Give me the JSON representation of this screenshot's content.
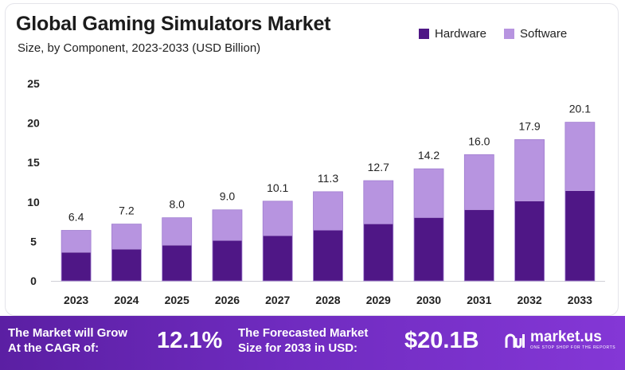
{
  "chart_data": {
    "type": "bar",
    "stacked": true,
    "title": "Global Gaming Simulators Market",
    "subtitle": "Size, by Component, 2023-2033 (USD Billion)",
    "categories": [
      "2023",
      "2024",
      "2025",
      "2026",
      "2027",
      "2028",
      "2029",
      "2030",
      "2031",
      "2032",
      "2033"
    ],
    "series": [
      {
        "name": "Hardware",
        "color": "#4f1786",
        "values": [
          3.6,
          4.0,
          4.5,
          5.1,
          5.7,
          6.4,
          7.2,
          8.0,
          9.0,
          10.1,
          11.4
        ]
      },
      {
        "name": "Software",
        "color": "#b794e0",
        "values": [
          2.8,
          3.2,
          3.5,
          3.9,
          4.4,
          4.9,
          5.5,
          6.2,
          7.0,
          7.8,
          8.7
        ]
      }
    ],
    "totals": [
      6.4,
      7.2,
      8.0,
      9.0,
      10.1,
      11.3,
      12.7,
      14.2,
      16.0,
      17.9,
      20.1
    ],
    "total_labels": [
      "6.4",
      "7.2",
      "8.0",
      "9.0",
      "10.1",
      "11.3",
      "12.7",
      "14.2",
      "16.0",
      "17.9",
      "20.1"
    ],
    "yticks": [
      "0",
      "5",
      "10",
      "15",
      "20",
      "25"
    ],
    "ylim": [
      0,
      25
    ],
    "legend_position": "top-right",
    "grid": false
  },
  "footer": {
    "cagr_text_line1": "The Market will Grow",
    "cagr_text_line2": "At the CAGR of:",
    "cagr_value": "12.1%",
    "forecast_text_line1": "The Forecasted Market",
    "forecast_text_line2": "Size for 2033 in USD:",
    "forecast_value": "$20.1B",
    "brand_name": "market.us",
    "brand_tagline": "ONE STOP SHOP FOR THE REPORTS"
  }
}
